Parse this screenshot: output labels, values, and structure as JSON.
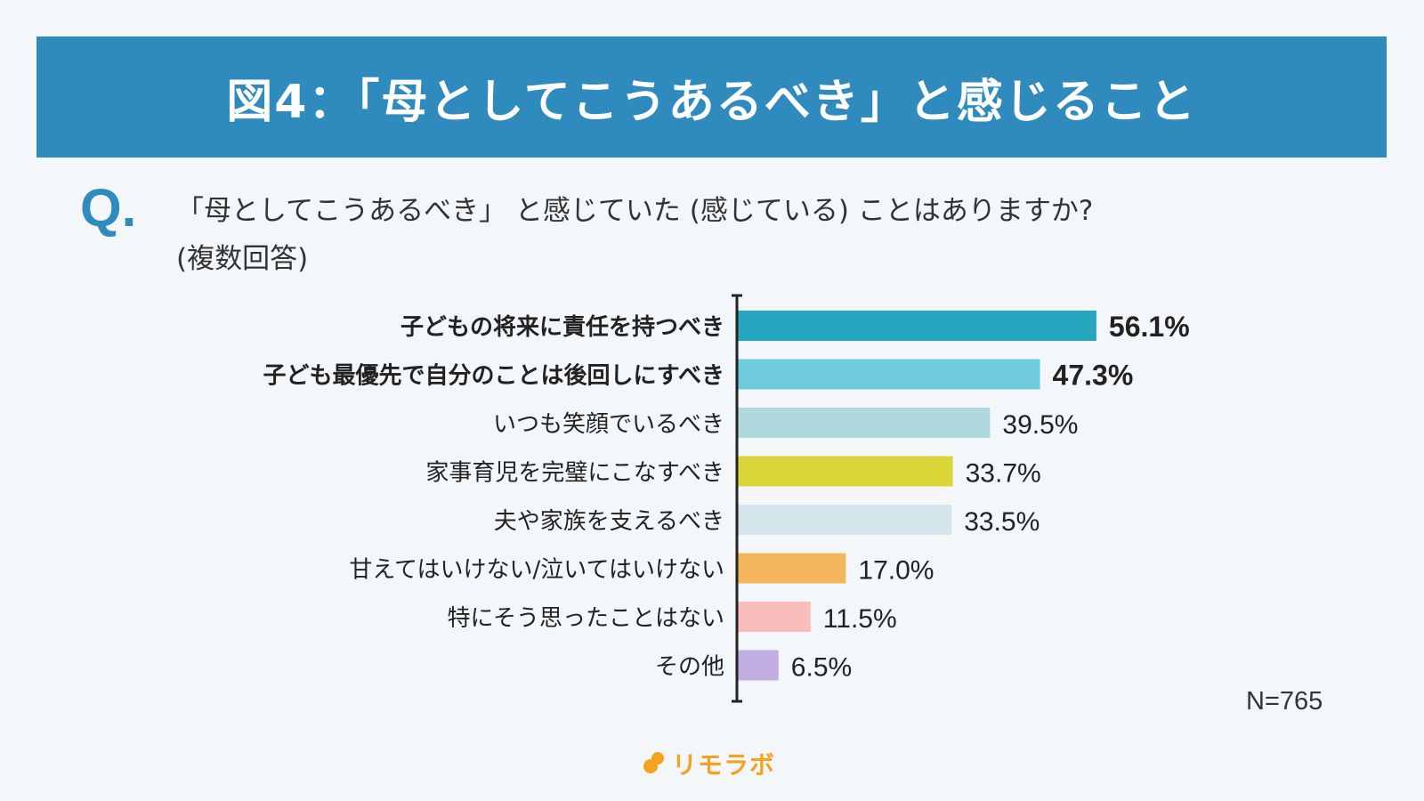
{
  "header": {
    "title": "図4：「母としてこうあるべき」と感じること"
  },
  "question": {
    "mark": "Q.",
    "line1": "「母としてこうあるべき」 と感じていた (感じている) ことはありますか?",
    "line2": "(複数回答)"
  },
  "sample_size": "N=765",
  "logo": {
    "text": "リモラボ",
    "color": "#f5a21c"
  },
  "chart_data": {
    "type": "bar",
    "orientation": "horizontal",
    "categories": [
      "子どもの将来に責任を持つべき",
      "子ども最優先で自分のことは後回しにすべき",
      "いつも笑顔でいるべき",
      "家事育児を完璧にこなすべき",
      "夫や家族を支えるべき",
      "甘えてはいけない/泣いてはいけない",
      "特にそう思ったことはない",
      "その他"
    ],
    "values": [
      56.1,
      47.3,
      39.5,
      33.7,
      33.5,
      17.0,
      11.5,
      6.5
    ],
    "value_labels": [
      "56.1%",
      "47.3%",
      "39.5%",
      "33.7%",
      "33.5%",
      "17.0%",
      "11.5%",
      "6.5%"
    ],
    "colors": [
      "#27a7bf",
      "#6ecbdc",
      "#b0d8df",
      "#dbd638",
      "#d3e5ea",
      "#f3b65c",
      "#fbbcbc",
      "#c3aee3"
    ],
    "bold": [
      true,
      true,
      false,
      false,
      false,
      false,
      false,
      false
    ],
    "xlim": [
      0,
      100
    ]
  }
}
